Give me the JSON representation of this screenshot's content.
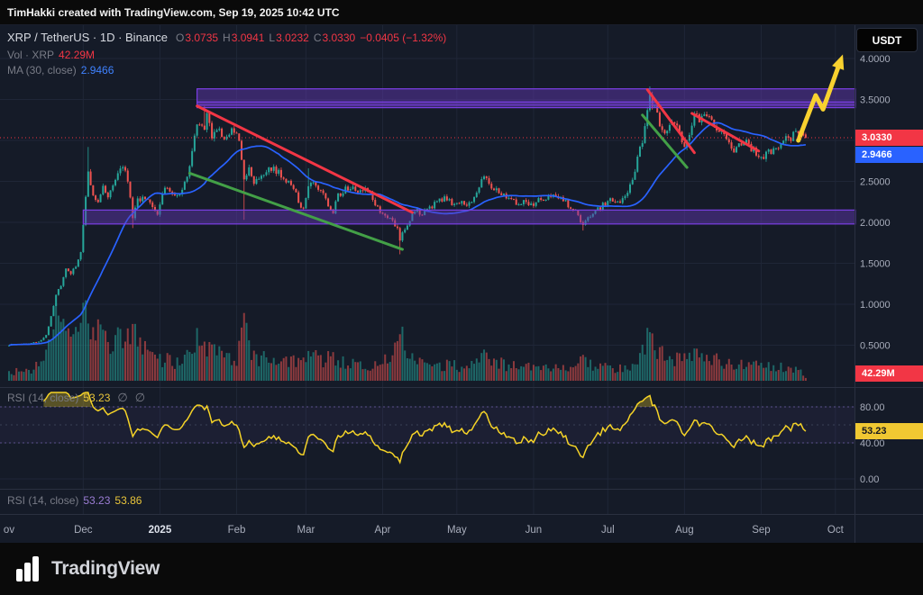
{
  "top_bar": {
    "text": "TimHakki created with TradingView.com, Sep 19, 2025 10:42 UTC"
  },
  "header": {
    "title": "XRP / TetherUS · 1D · Binance",
    "ohlc": [
      {
        "label": "O",
        "value": "3.0735"
      },
      {
        "label": "H",
        "value": "3.0941"
      },
      {
        "label": "L",
        "value": "3.0232"
      },
      {
        "label": "C",
        "value": "3.0330"
      }
    ],
    "change": "−0.0405 (−1.32%)",
    "volume_row": {
      "label": "Vol · XRP",
      "value": "42.29M"
    },
    "ma_row": {
      "label": "MA (30, close)",
      "value": "2.9466"
    }
  },
  "currency_button": {
    "label": "USDT"
  },
  "badges": {
    "price": "3.0330",
    "ma": "2.9466",
    "volume": "42.29M",
    "rsi": "53.23"
  },
  "rsi_pane": {
    "legend_label": "RSI (14, close)",
    "legend_value": "53.23",
    "icon": "∅"
  },
  "rsi2_pane": {
    "legend_label": "RSI (14, close)",
    "value1": "53.23",
    "value2": "53.86"
  },
  "footer": {
    "brand": "TradingView"
  },
  "axes": {
    "price_labels": [
      {
        "t": "4.0000",
        "p": 4.0
      },
      {
        "t": "3.5000",
        "p": 3.5
      },
      {
        "t": "2.5000",
        "p": 2.5
      },
      {
        "t": "2.0000",
        "p": 2.0
      },
      {
        "t": "1.5000",
        "p": 1.5
      },
      {
        "t": "1.0000",
        "p": 1.0
      },
      {
        "t": "0.5000",
        "p": 0.5
      }
    ],
    "rsi_labels": [
      {
        "t": "80.00",
        "v": 80
      },
      {
        "t": "40.00",
        "v": 40
      },
      {
        "t": "0.00",
        "v": 0
      }
    ],
    "time_labels": [
      {
        "t": "ov",
        "d": 0,
        "major": false
      },
      {
        "t": "Dec",
        "d": 30,
        "major": false
      },
      {
        "t": "2025",
        "d": 61,
        "major": true
      },
      {
        "t": "Feb",
        "d": 92,
        "major": false
      },
      {
        "t": "Mar",
        "d": 120,
        "major": false
      },
      {
        "t": "Apr",
        "d": 151,
        "major": false
      },
      {
        "t": "May",
        "d": 181,
        "major": false
      },
      {
        "t": "Jun",
        "d": 212,
        "major": false
      },
      {
        "t": "Jul",
        "d": 242,
        "major": false
      },
      {
        "t": "Aug",
        "d": 273,
        "major": false
      },
      {
        "t": "Sep",
        "d": 304,
        "major": false
      },
      {
        "t": "Oct",
        "d": 334,
        "major": false
      }
    ]
  },
  "chart_data": {
    "type": "candlestick",
    "symbol": "XRP/USDT",
    "interval": "1D",
    "exchange": "Binance",
    "price_axis_range": [
      0,
      4.42
    ],
    "rsi_range": [
      0,
      100
    ],
    "volume_scale_max_m": 1200,
    "ma_period": 30,
    "rsi_period": 14,
    "rsi_bands": {
      "upper": 80,
      "lower": 40
    },
    "last_candle": {
      "open": 3.0735,
      "high": 3.0941,
      "low": 3.0232,
      "close": 3.033
    },
    "last_volume_m": 42.29,
    "close_waypoints": [
      [
        0,
        0.505
      ],
      [
        6,
        0.515
      ],
      [
        10,
        0.53
      ],
      [
        13,
        0.56
      ],
      [
        15,
        0.62
      ],
      [
        17,
        0.85
      ],
      [
        19,
        1.12
      ],
      [
        21,
        1.22
      ],
      [
        23,
        1.42
      ],
      [
        25,
        1.38
      ],
      [
        27,
        1.47
      ],
      [
        29,
        1.63
      ],
      [
        30,
        1.95
      ],
      [
        31,
        2.28
      ],
      [
        32,
        2.6
      ],
      [
        33,
        2.45
      ],
      [
        34,
        2.32
      ],
      [
        36,
        2.22
      ],
      [
        38,
        2.46
      ],
      [
        40,
        2.33
      ],
      [
        42,
        2.42
      ],
      [
        44,
        2.56
      ],
      [
        46,
        2.7
      ],
      [
        48,
        2.52
      ],
      [
        50,
        2.05
      ],
      [
        52,
        2.26
      ],
      [
        54,
        2.32
      ],
      [
        56,
        2.28
      ],
      [
        58,
        2.16
      ],
      [
        60,
        2.09
      ],
      [
        62,
        2.35
      ],
      [
        64,
        2.42
      ],
      [
        66,
        2.36
      ],
      [
        68,
        2.31
      ],
      [
        70,
        2.42
      ],
      [
        72,
        2.56
      ],
      [
        74,
        2.85
      ],
      [
        75,
        3.1
      ],
      [
        76,
        3.18
      ],
      [
        77,
        3.22
      ],
      [
        79,
        3.12
      ],
      [
        80,
        3.3
      ],
      [
        81,
        3.18
      ],
      [
        82,
        3.06
      ],
      [
        84,
        3.14
      ],
      [
        86,
        3.08
      ],
      [
        88,
        3.04
      ],
      [
        90,
        3.11
      ],
      [
        92,
        3.05
      ],
      [
        93,
        3.0
      ],
      [
        95,
        2.52
      ],
      [
        97,
        2.66
      ],
      [
        99,
        2.5
      ],
      [
        101,
        2.56
      ],
      [
        103,
        2.58
      ],
      [
        105,
        2.68
      ],
      [
        107,
        2.64
      ],
      [
        109,
        2.6
      ],
      [
        111,
        2.56
      ],
      [
        113,
        2.48
      ],
      [
        115,
        2.42
      ],
      [
        117,
        2.25
      ],
      [
        119,
        2.14
      ],
      [
        121,
        2.48
      ],
      [
        123,
        2.52
      ],
      [
        125,
        2.4
      ],
      [
        127,
        2.34
      ],
      [
        129,
        2.2
      ],
      [
        131,
        2.14
      ],
      [
        133,
        2.32
      ],
      [
        135,
        2.38
      ],
      [
        137,
        2.42
      ],
      [
        139,
        2.46
      ],
      [
        141,
        2.38
      ],
      [
        143,
        2.41
      ],
      [
        145,
        2.39
      ],
      [
        147,
        2.28
      ],
      [
        149,
        2.18
      ],
      [
        151,
        2.12
      ],
      [
        153,
        2.06
      ],
      [
        155,
        2.0
      ],
      [
        157,
        1.92
      ],
      [
        158,
        1.78
      ],
      [
        159,
        1.88
      ],
      [
        161,
        1.98
      ],
      [
        163,
        2.1
      ],
      [
        165,
        2.14
      ],
      [
        167,
        2.1
      ],
      [
        169,
        2.16
      ],
      [
        171,
        2.2
      ],
      [
        173,
        2.24
      ],
      [
        175,
        2.27
      ],
      [
        177,
        2.3
      ],
      [
        179,
        2.24
      ],
      [
        181,
        2.21
      ],
      [
        183,
        2.24
      ],
      [
        185,
        2.2
      ],
      [
        187,
        2.26
      ],
      [
        189,
        2.36
      ],
      [
        191,
        2.52
      ],
      [
        192,
        2.58
      ],
      [
        194,
        2.44
      ],
      [
        196,
        2.4
      ],
      [
        198,
        2.37
      ],
      [
        200,
        2.34
      ],
      [
        202,
        2.31
      ],
      [
        204,
        2.25
      ],
      [
        206,
        2.23
      ],
      [
        208,
        2.27
      ],
      [
        210,
        2.2
      ],
      [
        212,
        2.23
      ],
      [
        214,
        2.26
      ],
      [
        216,
        2.28
      ],
      [
        218,
        2.3
      ],
      [
        220,
        2.32
      ],
      [
        222,
        2.29
      ],
      [
        224,
        2.27
      ],
      [
        226,
        2.21
      ],
      [
        228,
        2.16
      ],
      [
        230,
        2.08
      ],
      [
        232,
        1.96
      ],
      [
        234,
        2.06
      ],
      [
        236,
        2.11
      ],
      [
        238,
        2.17
      ],
      [
        240,
        2.21
      ],
      [
        242,
        2.24
      ],
      [
        244,
        2.29
      ],
      [
        246,
        2.26
      ],
      [
        248,
        2.28
      ],
      [
        250,
        2.33
      ],
      [
        252,
        2.52
      ],
      [
        254,
        2.78
      ],
      [
        256,
        2.98
      ],
      [
        257,
        3.18
      ],
      [
        258,
        3.42
      ],
      [
        259,
        3.51
      ],
      [
        260,
        3.46
      ],
      [
        261,
        3.43
      ],
      [
        262,
        3.31
      ],
      [
        263,
        3.19
      ],
      [
        264,
        3.12
      ],
      [
        265,
        3.08
      ],
      [
        266,
        3.16
      ],
      [
        267,
        3.2
      ],
      [
        268,
        3.26
      ],
      [
        269,
        3.23
      ],
      [
        270,
        3.17
      ],
      [
        271,
        3.12
      ],
      [
        272,
        3.02
      ],
      [
        273,
        2.96
      ],
      [
        274,
        3.04
      ],
      [
        275,
        3.08
      ],
      [
        276,
        3.22
      ],
      [
        277,
        3.3
      ],
      [
        279,
        3.26
      ],
      [
        281,
        3.3
      ],
      [
        283,
        3.33
      ],
      [
        285,
        3.22
      ],
      [
        287,
        3.12
      ],
      [
        289,
        3.04
      ],
      [
        291,
        2.97
      ],
      [
        293,
        2.89
      ],
      [
        295,
        2.93
      ],
      [
        297,
        3.01
      ],
      [
        299,
        2.93
      ],
      [
        301,
        2.87
      ],
      [
        303,
        2.81
      ],
      [
        305,
        2.79
      ],
      [
        307,
        2.85
      ],
      [
        309,
        2.89
      ],
      [
        311,
        2.95
      ],
      [
        313,
        3.03
      ],
      [
        315,
        2.99
      ],
      [
        317,
        3.06
      ],
      [
        319,
        3.09
      ],
      [
        321,
        3.08
      ],
      [
        322,
        3.033
      ]
    ],
    "volume_waypoints_m": [
      [
        0,
        130
      ],
      [
        8,
        150
      ],
      [
        14,
        260
      ],
      [
        16,
        620
      ],
      [
        18,
        950
      ],
      [
        20,
        800
      ],
      [
        22,
        700
      ],
      [
        24,
        620
      ],
      [
        26,
        560
      ],
      [
        28,
        640
      ],
      [
        31,
        1150
      ],
      [
        33,
        980
      ],
      [
        35,
        760
      ],
      [
        38,
        620
      ],
      [
        41,
        560
      ],
      [
        44,
        600
      ],
      [
        47,
        520
      ],
      [
        50,
        700
      ],
      [
        53,
        480
      ],
      [
        56,
        420
      ],
      [
        59,
        360
      ],
      [
        62,
        330
      ],
      [
        65,
        300
      ],
      [
        68,
        280
      ],
      [
        71,
        320
      ],
      [
        74,
        560
      ],
      [
        76,
        640
      ],
      [
        78,
        520
      ],
      [
        80,
        560
      ],
      [
        83,
        440
      ],
      [
        86,
        380
      ],
      [
        89,
        340
      ],
      [
        92,
        320
      ],
      [
        95,
        820
      ],
      [
        97,
        520
      ],
      [
        100,
        380
      ],
      [
        103,
        340
      ],
      [
        106,
        320
      ],
      [
        110,
        300
      ],
      [
        114,
        290
      ],
      [
        118,
        330
      ],
      [
        121,
        520
      ],
      [
        124,
        380
      ],
      [
        127,
        320
      ],
      [
        130,
        340
      ],
      [
        134,
        300
      ],
      [
        138,
        280
      ],
      [
        142,
        260
      ],
      [
        146,
        250
      ],
      [
        150,
        280
      ],
      [
        154,
        320
      ],
      [
        158,
        720
      ],
      [
        160,
        480
      ],
      [
        163,
        380
      ],
      [
        166,
        300
      ],
      [
        170,
        260
      ],
      [
        174,
        240
      ],
      [
        178,
        230
      ],
      [
        182,
        220
      ],
      [
        186,
        210
      ],
      [
        190,
        420
      ],
      [
        192,
        460
      ],
      [
        195,
        320
      ],
      [
        198,
        260
      ],
      [
        202,
        230
      ],
      [
        206,
        210
      ],
      [
        210,
        200
      ],
      [
        214,
        195
      ],
      [
        218,
        190
      ],
      [
        222,
        185
      ],
      [
        226,
        190
      ],
      [
        230,
        240
      ],
      [
        232,
        340
      ],
      [
        235,
        240
      ],
      [
        238,
        210
      ],
      [
        242,
        200
      ],
      [
        246,
        190
      ],
      [
        250,
        210
      ],
      [
        253,
        340
      ],
      [
        255,
        420
      ],
      [
        257,
        560
      ],
      [
        259,
        680
      ],
      [
        261,
        520
      ],
      [
        263,
        440
      ],
      [
        265,
        380
      ],
      [
        268,
        360
      ],
      [
        271,
        330
      ],
      [
        274,
        340
      ],
      [
        277,
        380
      ],
      [
        280,
        330
      ],
      [
        283,
        340
      ],
      [
        286,
        300
      ],
      [
        289,
        280
      ],
      [
        292,
        260
      ],
      [
        295,
        250
      ],
      [
        298,
        240
      ],
      [
        301,
        230
      ],
      [
        304,
        220
      ],
      [
        307,
        210
      ],
      [
        310,
        200
      ],
      [
        313,
        195
      ],
      [
        316,
        185
      ],
      [
        319,
        170
      ],
      [
        322,
        42.29
      ]
    ],
    "wick_events": [
      {
        "day": 32,
        "high": 2.92
      },
      {
        "day": 50,
        "low": 1.93
      },
      {
        "day": 79,
        "high": 3.42
      },
      {
        "day": 95,
        "low": 2.03
      },
      {
        "day": 121,
        "high": 2.66
      },
      {
        "day": 158,
        "low": 1.61
      },
      {
        "day": 232,
        "low": 1.9
      },
      {
        "day": 259,
        "high": 3.66
      }
    ],
    "annotations": {
      "zones": [
        {
          "from_day": 76,
          "to_day": 342,
          "top": 3.63,
          "bottom": 3.43
        },
        {
          "from_day": 76,
          "to_day": 342,
          "top": 3.47,
          "bottom": 3.4
        },
        {
          "from_day": 30,
          "to_day": 342,
          "top": 2.15,
          "bottom": 1.98
        }
      ],
      "trendlines": [
        {
          "color": "red",
          "from": [
            76,
            3.42
          ],
          "to": [
            163,
            2.12
          ]
        },
        {
          "color": "green",
          "from": [
            73,
            2.6
          ],
          "to": [
            159,
            1.67
          ]
        },
        {
          "color": "red",
          "from": [
            258,
            3.62
          ],
          "to": [
            277,
            2.85
          ]
        },
        {
          "color": "green",
          "from": [
            256,
            3.31
          ],
          "to": [
            274,
            2.67
          ]
        },
        {
          "color": "red",
          "from": [
            276,
            3.33
          ],
          "to": [
            303,
            2.87
          ]
        }
      ],
      "arrow": {
        "points": [
          [
            319,
            3.0
          ],
          [
            326,
            3.55
          ],
          [
            329,
            3.38
          ],
          [
            337,
            4.05
          ]
        ]
      },
      "current_price_line": 3.033
    }
  },
  "colors": {
    "up": "#26a69a",
    "down": "#ef5350",
    "ma": "#2962ff",
    "rsi_line": "#f5d327",
    "zone_fill": "rgba(103,58,183,0.45)",
    "zone_border": "#7b3fe4",
    "red_line": "#f23645",
    "green_line": "#43a047",
    "arrow": "#f8d12f",
    "grid": "#1f2637",
    "axis_text": "#a8adbb",
    "separator": "#2a3040",
    "band_dash": "rgba(134,110,200,0.6)",
    "band_fill": "rgba(126,87,194,0.07)",
    "overbought_fill": "rgba(245,211,39,0.3)"
  }
}
